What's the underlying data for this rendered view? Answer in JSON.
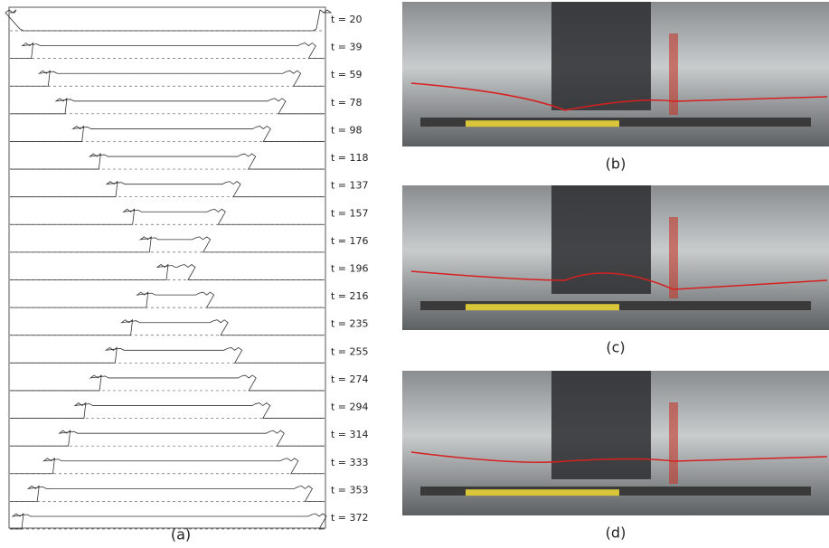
{
  "panel_a": {
    "label": "(a)",
    "times": [
      "t = 20",
      "t = 39",
      "t = 59",
      "t = 78",
      "t = 98",
      "t = 118",
      "t = 137",
      "t = 157",
      "t = 176",
      "t = 196",
      "t = 216",
      "t = 235",
      "t = 255",
      "t = 274",
      "t = 294",
      "t = 314",
      "t = 333",
      "t = 353",
      "t = 372"
    ]
  },
  "photos": [
    {
      "label": "(b)"
    },
    {
      "label": "(c)"
    },
    {
      "label": "(d)"
    }
  ]
}
